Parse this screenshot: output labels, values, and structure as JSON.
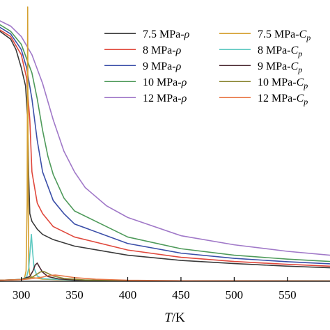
{
  "chart_data": {
    "type": "line",
    "title": "",
    "xlabel_italic": "T",
    "xlabel_unit": "/K",
    "ylabel": "",
    "xlim": [
      280,
      590
    ],
    "xticks": [
      300,
      350,
      400,
      450,
      500,
      550
    ],
    "xtick_labels": [
      "300",
      "350",
      "400",
      "450",
      "500",
      "550"
    ],
    "grid": false,
    "legend_placement": "top-right",
    "series": [
      {
        "label_main": "7.5 MPa-",
        "label_symbol": "ρ",
        "label_sub": "",
        "color": "#3a3a3a",
        "x": [
          270,
          280,
          290,
          295,
          300,
          304,
          306,
          307,
          308,
          310,
          315,
          320,
          330,
          350,
          400,
          450,
          500,
          550,
          590
        ],
        "y": [
          0.97,
          0.96,
          0.93,
          0.89,
          0.82,
          0.75,
          0.62,
          0.4,
          0.26,
          0.23,
          0.2,
          0.18,
          0.16,
          0.135,
          0.1,
          0.08,
          0.068,
          0.058,
          0.052
        ]
      },
      {
        "label_main": "8 MPa-",
        "label_symbol": "ρ",
        "label_sub": "",
        "color": "#e0483c",
        "x": [
          270,
          280,
          290,
          300,
          305,
          308,
          310,
          315,
          320,
          330,
          350,
          400,
          450,
          500,
          550,
          590
        ],
        "y": [
          0.98,
          0.965,
          0.94,
          0.87,
          0.78,
          0.62,
          0.42,
          0.3,
          0.26,
          0.21,
          0.17,
          0.12,
          0.092,
          0.076,
          0.065,
          0.058
        ]
      },
      {
        "label_main": "9 MPa-",
        "label_symbol": "ρ",
        "label_sub": "",
        "color": "#3a4ea8",
        "x": [
          270,
          280,
          290,
          300,
          305,
          310,
          315,
          320,
          330,
          340,
          350,
          400,
          450,
          500,
          550,
          590
        ],
        "y": [
          0.99,
          0.975,
          0.95,
          0.89,
          0.82,
          0.7,
          0.54,
          0.42,
          0.31,
          0.26,
          0.22,
          0.145,
          0.108,
          0.088,
          0.075,
          0.067
        ]
      },
      {
        "label_main": "10 MPa-",
        "label_symbol": "ρ",
        "label_sub": "",
        "color": "#4e9a5a",
        "x": [
          270,
          280,
          290,
          300,
          310,
          315,
          320,
          325,
          330,
          340,
          350,
          400,
          450,
          500,
          550,
          590
        ],
        "y": [
          1.0,
          0.985,
          0.96,
          0.91,
          0.8,
          0.7,
          0.58,
          0.48,
          0.41,
          0.32,
          0.27,
          0.17,
          0.125,
          0.1,
          0.085,
          0.076
        ]
      },
      {
        "label_main": "12 MPa-",
        "label_symbol": "ρ",
        "label_sub": "",
        "color": "#a078c8",
        "x": [
          270,
          280,
          290,
          300,
          310,
          320,
          330,
          340,
          350,
          360,
          380,
          400,
          450,
          500,
          550,
          590
        ],
        "y": [
          1.02,
          1.0,
          0.98,
          0.94,
          0.87,
          0.76,
          0.62,
          0.5,
          0.42,
          0.36,
          0.29,
          0.245,
          0.175,
          0.14,
          0.115,
          0.1
        ]
      },
      {
        "label_main": "7.5 MPa-",
        "label_symbol": "C",
        "label_sub": "p",
        "color": "#d4a030",
        "x": [
          280,
          300,
          303,
          304.5,
          305.5,
          306,
          306.5,
          307,
          308,
          310,
          320,
          350,
          400,
          590
        ],
        "y": [
          0.004,
          0.006,
          0.012,
          0.04,
          0.3,
          1.18,
          0.3,
          0.06,
          0.025,
          0.015,
          0.008,
          0.004,
          0.002,
          0.001
        ]
      },
      {
        "label_main": "8 MPa-",
        "label_symbol": "C",
        "label_sub": "p",
        "color": "#5cc8c0",
        "x": [
          280,
          300,
          305,
          307,
          308.5,
          309.5,
          310.5,
          312,
          315,
          320,
          350,
          400,
          590
        ],
        "y": [
          0.004,
          0.007,
          0.016,
          0.05,
          0.13,
          0.18,
          0.12,
          0.05,
          0.02,
          0.01,
          0.004,
          0.002,
          0.001
        ]
      },
      {
        "label_main": "9 MPa-",
        "label_symbol": "C",
        "label_sub": "p",
        "color": "#4a2830",
        "x": [
          280,
          300,
          308,
          311,
          313,
          315,
          317,
          320,
          325,
          335,
          350,
          400,
          590
        ],
        "y": [
          0.004,
          0.007,
          0.018,
          0.04,
          0.062,
          0.07,
          0.055,
          0.035,
          0.018,
          0.009,
          0.005,
          0.002,
          0.001
        ]
      },
      {
        "label_main": "10 MPa-",
        "label_symbol": "C",
        "label_sub": "p",
        "color": "#8a8530",
        "x": [
          280,
          300,
          310,
          315,
          318,
          321,
          325,
          330,
          340,
          360,
          400,
          590
        ],
        "y": [
          0.004,
          0.007,
          0.015,
          0.028,
          0.036,
          0.038,
          0.03,
          0.02,
          0.011,
          0.005,
          0.002,
          0.001
        ]
      },
      {
        "label_main": "12 MPa-",
        "label_symbol": "C",
        "label_sub": "p",
        "color": "#e87848",
        "x": [
          280,
          300,
          310,
          320,
          326,
          332,
          340,
          350,
          370,
          400,
          450,
          590
        ],
        "y": [
          0.004,
          0.006,
          0.01,
          0.016,
          0.022,
          0.024,
          0.02,
          0.014,
          0.008,
          0.004,
          0.002,
          0.001
        ]
      }
    ]
  }
}
